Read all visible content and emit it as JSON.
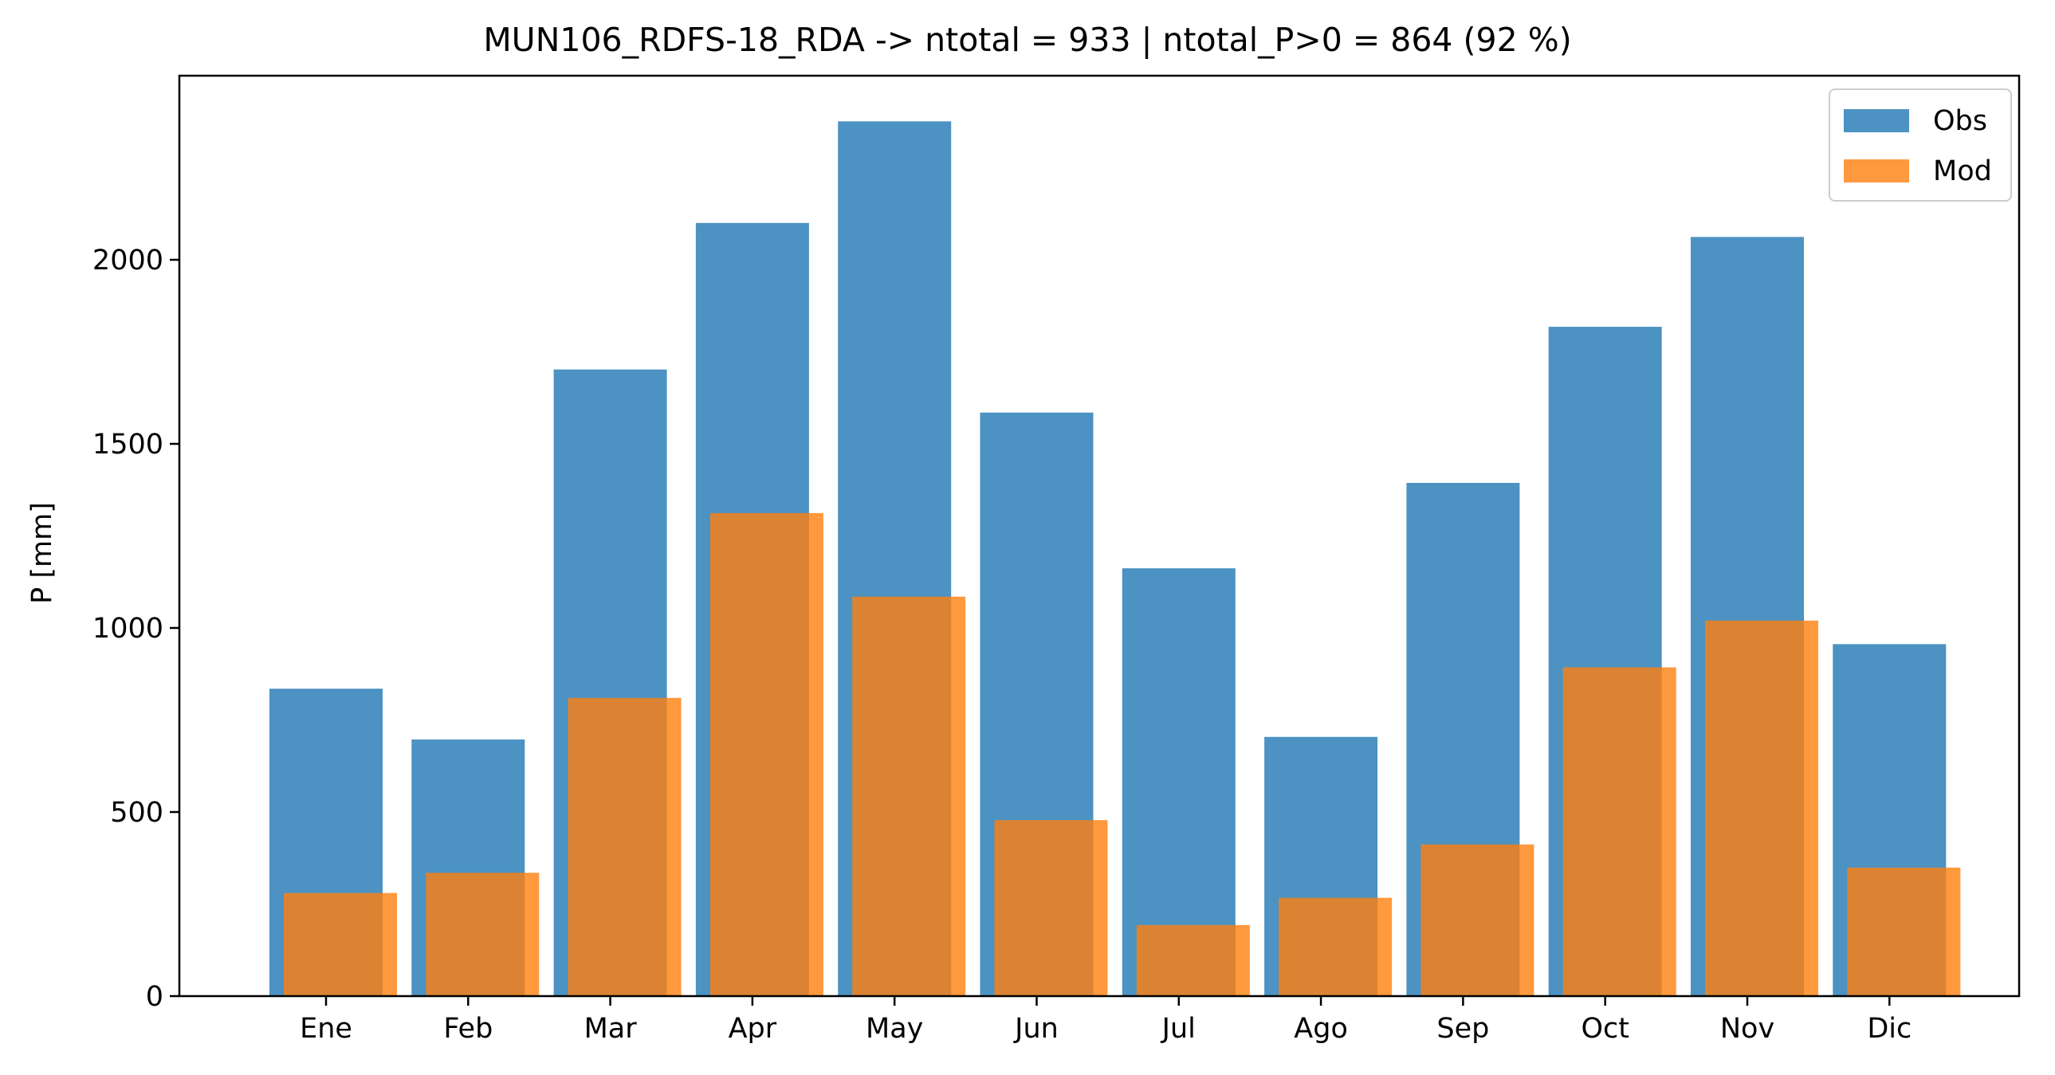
{
  "chart_data": {
    "type": "bar",
    "title": "MUN106_RDFS-18_RDA -> ntotal = 933 | ntotal_P>0 = 864 (92 %)",
    "xlabel": "",
    "ylabel": "P [mm]",
    "categories": [
      "Ene",
      "Feb",
      "Mar",
      "Apr",
      "May",
      "Jun",
      "Jul",
      "Ago",
      "Sep",
      "Oct",
      "Nov",
      "Dic"
    ],
    "series": [
      {
        "name": "Obs",
        "color": "#1f77b4",
        "opacity": 0.8,
        "values": [
          835,
          697,
          1702,
          2100,
          2376,
          1585,
          1162,
          704,
          1394,
          1818,
          2062,
          956
        ]
      },
      {
        "name": "Mod",
        "color": "#ff7f0e",
        "opacity": 0.8,
        "values": [
          280,
          335,
          810,
          1312,
          1085,
          478,
          193,
          267,
          412,
          893,
          1020,
          349
        ]
      }
    ],
    "yticks": [
      "0",
      "500",
      "1000",
      "1500",
      "2000"
    ],
    "ylim": [
      0,
      2500
    ],
    "grid": false,
    "legend": {
      "position": "top-right"
    }
  }
}
